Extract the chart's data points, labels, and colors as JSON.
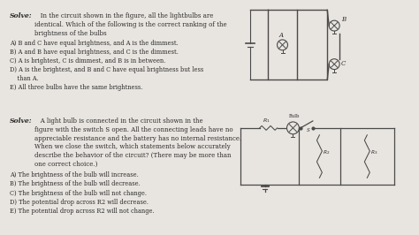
{
  "bg_color": "#e8e5e0",
  "text_color": "#2a2a2a",
  "lc": "#4a4a4a",
  "title1": "Solve:",
  "body1": "   In the circuit shown in the figure, all the lightbulbs are\nidentical. Which of the following is the correct ranking of the\nbrightness of the bulbs",
  "options1a": "A) ",
  "options1": "A) B and C have equal brightness, and A is the dimmest.\nB) A and B have equal brightness, and C is the dimmest.\nC) A is brightest, C is dimmest, and B is in between.\nD) A is the brightest, and B and C have equal brightness but less\n    than A.\nE) All three bulbs have the same brightness.",
  "title2": "Solve:",
  "body2": "   A light bulb is connected in the circuit shown in the\nfigure with the switch S open. All the connecting leads have no\nappreciable resistance and the battery has no internal resistance.\nWhen we close the switch, which statements below accurately\ndescribe the behavior of the circuit? (There may be more than\none correct choice.)",
  "options2": "A) The brightness of the bulb will increase.\nB) The brightness of the bulb will decrease.\nC) The brightness of the bulb will not change.\nD) The potential drop across R2 will decrease.\nE) The potential drop across R2 will not change."
}
